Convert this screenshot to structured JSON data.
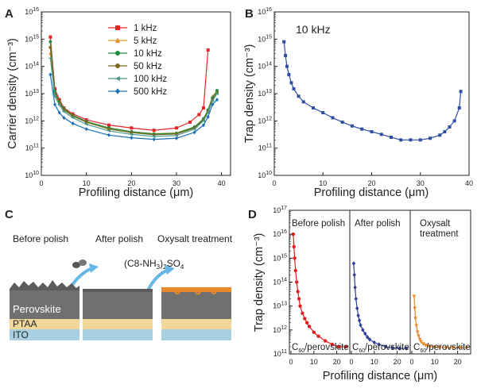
{
  "panels": {
    "a": {
      "letter": "A"
    },
    "b": {
      "letter": "B",
      "annotation": "10 kHz"
    },
    "c": {
      "letter": "C",
      "steps": [
        "Before polish",
        "After polish",
        "Oxysalt treatment"
      ],
      "reagent_main": "(C8-NH",
      "reagent_sub1": "3",
      "reagent_mid": ")",
      "reagent_sub2": "2",
      "reagent_tail": "SO",
      "reagent_sub3": "4",
      "layers": {
        "perovskite": "Perovskite",
        "ptaa": "PTAA",
        "ito": "ITO"
      },
      "colors": {
        "perovskite": "#6e6e6e",
        "ptaa": "#f2d79a",
        "ito": "#a9cfe2",
        "oxysalt": "#e88a2a",
        "arrow": "#66b7e6"
      }
    },
    "d": {
      "letter": "D",
      "sections": [
        {
          "title": "Before polish",
          "color": "#e02020",
          "marker": "circle"
        },
        {
          "title": "After polish",
          "color": "#2f3f96",
          "marker": "diamond"
        },
        {
          "title": "Oxysalt",
          "title2": "treatment",
          "color": "#e88a2a",
          "marker": "triangle-down"
        }
      ],
      "interface_label": {
        "c": "C",
        "sub": "60",
        "rest": "/perovskite"
      }
    }
  },
  "chart_data": [
    {
      "type": "line",
      "panel": "A",
      "ylabel": "Carrier density (cm⁻³)",
      "xlabel": "Profiling distance (μm)",
      "xlim": [
        0,
        42
      ],
      "xticks": [
        0,
        10,
        20,
        30,
        40
      ],
      "ylim_log10": [
        10,
        16
      ],
      "yscale": "log",
      "ytick_labels": [
        "10",
        "11",
        "12",
        "13",
        "14",
        "15",
        "16"
      ],
      "legend_position": "top-center",
      "series": [
        {
          "name": "1 kHz",
          "color": "#e8232a",
          "marker": "square",
          "x": [
            2,
            3,
            4,
            5,
            7,
            10,
            15,
            20,
            25,
            30,
            33,
            35,
            36,
            37
          ],
          "y": [
            1200000000000000.0,
            15000000000000.0,
            6000000000000.0,
            3000000000000.0,
            1800000000000.0,
            1100000000000.0,
            700000000000.0,
            550000000000.0,
            450000000000.0,
            550000000000.0,
            900000000000.0,
            1700000000000.0,
            3000000000000.0,
            400000000000000.0
          ]
        },
        {
          "name": "5 kHz",
          "color": "#e8902a",
          "marker": "triangle",
          "x": [
            2,
            3,
            4,
            5,
            7,
            10,
            15,
            20,
            25,
            30,
            34,
            36,
            37,
            38,
            39
          ],
          "y": [
            300000000000000.0,
            10000000000000.0,
            4500000000000.0,
            2500000000000.0,
            1500000000000.0,
            900000000000.0,
            550000000000.0,
            400000000000.0,
            340000000000.0,
            360000000000.0,
            600000000000.0,
            1200000000000.0,
            2500000000000.0,
            8000000000000.0,
            12000000000000.0
          ]
        },
        {
          "name": "10 kHz",
          "color": "#1c8a3a",
          "marker": "circle",
          "x": [
            2,
            3,
            4,
            5,
            7,
            10,
            15,
            20,
            25,
            30,
            34,
            36,
            37,
            38,
            39
          ],
          "y": [
            800000000000000.0,
            12000000000000.0,
            5000000000000.0,
            2800000000000.0,
            1600000000000.0,
            950000000000.0,
            550000000000.0,
            400000000000.0,
            330000000000.0,
            350000000000.0,
            600000000000.0,
            1200000000000.0,
            2500000000000.0,
            7000000000000.0,
            13000000000000.0
          ]
        },
        {
          "name": "50 kHz",
          "color": "#7a6a1f",
          "marker": "circle",
          "x": [
            2,
            3,
            4,
            5,
            7,
            10,
            15,
            20,
            25,
            30,
            34,
            36,
            37,
            38,
            39
          ],
          "y": [
            500000000000000.0,
            11000000000000.0,
            4500000000000.0,
            2600000000000.0,
            1500000000000.0,
            900000000000.0,
            500000000000.0,
            370000000000.0,
            310000000000.0,
            330000000000.0,
            550000000000.0,
            1100000000000.0,
            2200000000000.0,
            6000000000000.0,
            11000000000000.0
          ]
        },
        {
          "name": "100 kHz",
          "color": "#4a9a8e",
          "marker": "triangle-left",
          "x": [
            2,
            3,
            4,
            5,
            7,
            10,
            15,
            20,
            25,
            30,
            34,
            36,
            37,
            38,
            39
          ],
          "y": [
            200000000000000.0,
            8000000000000.0,
            3800000000000.0,
            2200000000000.0,
            1300000000000.0,
            750000000000.0,
            430000000000.0,
            320000000000.0,
            270000000000.0,
            290000000000.0,
            500000000000.0,
            1000000000000.0,
            2000000000000.0,
            5500000000000.0,
            10000000000000.0
          ]
        },
        {
          "name": "500 kHz",
          "color": "#1f6fb4",
          "marker": "diamond",
          "x": [
            2,
            3,
            4,
            5,
            7,
            10,
            15,
            20,
            25,
            30,
            34,
            36,
            37,
            38,
            39
          ],
          "y": [
            50000000000000.0,
            4000000000000.0,
            2000000000000.0,
            1300000000000.0,
            800000000000.0,
            500000000000.0,
            300000000000.0,
            240000000000.0,
            210000000000.0,
            230000000000.0,
            380000000000.0,
            700000000000.0,
            1400000000000.0,
            4000000000000.0,
            6000000000000.0
          ]
        }
      ]
    },
    {
      "type": "line",
      "panel": "B",
      "ylabel": "Trap density (cm⁻³)",
      "xlabel": "Profiling distance (μm)",
      "xlim": [
        0,
        40
      ],
      "xticks": [
        0,
        10,
        20,
        30,
        40
      ],
      "ylim_log10": [
        10,
        16
      ],
      "yscale": "log",
      "ytick_labels": [
        "10",
        "11",
        "12",
        "13",
        "14",
        "15",
        "16"
      ],
      "series": [
        {
          "name": "10 kHz",
          "color": "#2f4fa0",
          "marker": "square",
          "x": [
            2,
            2.3,
            2.6,
            3,
            3.5,
            4,
            5,
            6,
            8,
            10,
            12,
            14,
            16,
            18,
            20,
            22,
            24,
            26,
            28,
            30,
            32,
            34,
            35,
            36,
            37,
            38,
            38.3
          ],
          "y": [
            800000000000000.0,
            250000000000000.0,
            100000000000000.0,
            50000000000000.0,
            25000000000000.0,
            15000000000000.0,
            8000000000000.0,
            5000000000000.0,
            3000000000000.0,
            2000000000000.0,
            1300000000000.0,
            900000000000.0,
            650000000000.0,
            500000000000.0,
            400000000000.0,
            320000000000.0,
            250000000000.0,
            200000000000.0,
            200000000000.0,
            200000000000.0,
            230000000000.0,
            300000000000.0,
            400000000000.0,
            600000000000.0,
            1000000000000.0,
            3000000000000.0,
            12000000000000.0
          ]
        }
      ]
    },
    {
      "type": "line",
      "panel": "D",
      "ylabel": "Trap density (cm⁻³)",
      "xlabel": "Profiling distance (μm)",
      "xticks": [
        0,
        10,
        20
      ],
      "ylim_log10": [
        11,
        17
      ],
      "yscale": "log",
      "ytick_labels": [
        "11",
        "12",
        "13",
        "14",
        "15",
        "16",
        "17"
      ],
      "series": [
        {
          "name": "Before polish",
          "color": "#e02020",
          "marker": "circle",
          "x": [
            1,
            1.3,
            1.6,
            2,
            2.5,
            3,
            3.5,
            4,
            5,
            6,
            7,
            8,
            10,
            12,
            15,
            18,
            21,
            24
          ],
          "y": [
            1e+16,
            3000000000000000.0,
            1000000000000000.0,
            300000000000000.0,
            100000000000000.0,
            40000000000000.0,
            20000000000000.0,
            10000000000000.0,
            5000000000000.0,
            3000000000000.0,
            2000000000000.0,
            1400000000000.0,
            800000000000.0,
            550000000000.0,
            350000000000.0,
            250000000000.0,
            200000000000.0,
            200000000000.0
          ]
        },
        {
          "name": "After polish",
          "color": "#2f3f96",
          "marker": "diamond",
          "x": [
            1,
            1.3,
            1.6,
            2,
            2.5,
            3,
            3.5,
            4,
            5,
            6,
            7,
            8,
            10,
            12,
            15,
            18,
            21,
            24
          ],
          "y": [
            600000000000000.0,
            200000000000000.0,
            60000000000000.0,
            20000000000000.0,
            8000000000000.0,
            4000000000000.0,
            2500000000000.0,
            1600000000000.0,
            1000000000000.0,
            700000000000.0,
            500000000000.0,
            400000000000.0,
            300000000000.0,
            250000000000.0,
            200000000000.0,
            180000000000.0,
            170000000000.0,
            170000000000.0
          ]
        },
        {
          "name": "Oxysalt treatment",
          "color": "#e88a2a",
          "marker": "triangle-down",
          "x": [
            1,
            1.3,
            1.6,
            2,
            2.5,
            3,
            3.5,
            4,
            5,
            6,
            7,
            8,
            10,
            12,
            15,
            18,
            21,
            24
          ],
          "y": [
            25000000000000.0,
            8000000000000.0,
            3000000000000.0,
            1500000000000.0,
            800000000000.0,
            550000000000.0,
            400000000000.0,
            320000000000.0,
            260000000000.0,
            230000000000.0,
            210000000000.0,
            200000000000.0,
            190000000000.0,
            190000000000.0,
            180000000000.0,
            180000000000.0,
            180000000000.0,
            180000000000.0
          ]
        }
      ]
    }
  ]
}
